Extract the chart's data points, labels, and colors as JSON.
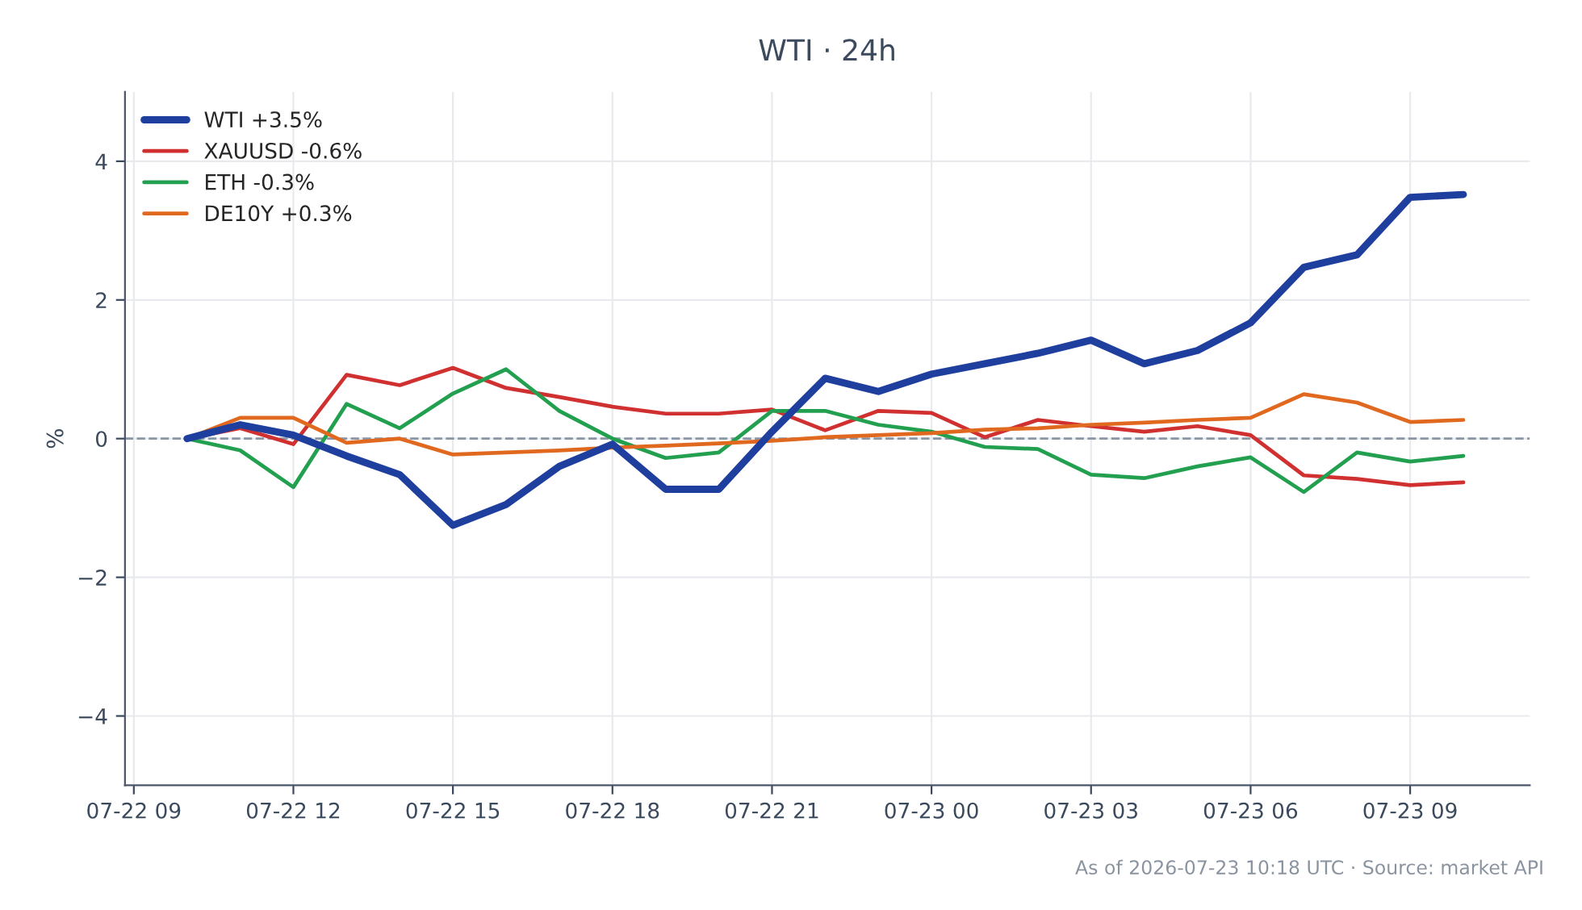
{
  "chart_data": {
    "type": "line",
    "title": "WTI · 24h",
    "ylabel": "%",
    "x": [
      "2026-07-22T10:00",
      "2026-07-22T11:00",
      "2026-07-22T12:00",
      "2026-07-22T13:00",
      "2026-07-22T14:00",
      "2026-07-22T15:00",
      "2026-07-22T16:00",
      "2026-07-22T17:00",
      "2026-07-22T18:00",
      "2026-07-22T19:00",
      "2026-07-22T20:00",
      "2026-07-22T21:00",
      "2026-07-22T22:00",
      "2026-07-22T23:00",
      "2026-07-23T00:00",
      "2026-07-23T01:00",
      "2026-07-23T02:00",
      "2026-07-23T03:00",
      "2026-07-23T04:00",
      "2026-07-23T05:00",
      "2026-07-23T06:00",
      "2026-07-23T07:00",
      "2026-07-23T08:00",
      "2026-07-23T09:00",
      "2026-07-23T10:00"
    ],
    "series": [
      {
        "name": "WTI +3.5%",
        "color": "#1f3f9f",
        "values": [
          0,
          0.2,
          0.05,
          -0.25,
          -0.52,
          -1.25,
          -0.95,
          -0.4,
          -0.08,
          -0.73,
          -0.73,
          0.1,
          0.87,
          0.68,
          0.93,
          1.08,
          1.23,
          1.42,
          1.08,
          1.27,
          1.67,
          2.47,
          2.65,
          3.48,
          3.52
        ]
      },
      {
        "name": "XAUUSD -0.6%",
        "color": "#d03030",
        "values": [
          0,
          0.15,
          -0.08,
          0.92,
          0.77,
          1.02,
          0.73,
          0.6,
          0.46,
          0.36,
          0.36,
          0.42,
          0.12,
          0.4,
          0.37,
          0.02,
          0.27,
          0.18,
          0.1,
          0.18,
          0.05,
          -0.53,
          -0.58,
          -0.67,
          -0.63
        ]
      },
      {
        "name": "ETH -0.3%",
        "color": "#22a050",
        "values": [
          0,
          -0.17,
          -0.7,
          0.5,
          0.15,
          0.65,
          1.0,
          0.4,
          0.0,
          -0.28,
          -0.2,
          0.4,
          0.4,
          0.2,
          0.1,
          -0.12,
          -0.15,
          -0.52,
          -0.57,
          -0.4,
          -0.27,
          -0.77,
          -0.2,
          -0.33,
          -0.25
        ]
      },
      {
        "name": "DE10Y +0.3%",
        "color": "#e0691f",
        "values": [
          0,
          0.3,
          0.3,
          -0.06,
          0.0,
          -0.23,
          -0.2,
          -0.17,
          -0.13,
          -0.1,
          -0.07,
          -0.03,
          0.02,
          0.05,
          0.08,
          0.13,
          0.15,
          0.2,
          0.23,
          0.27,
          0.3,
          0.64,
          0.52,
          0.24,
          0.27
        ]
      }
    ],
    "xlim": [
      "2026-07-22T08:50",
      "2026-07-23T11:15"
    ],
    "xticks": [
      {
        "value": "2026-07-22T09:00",
        "label": "07-22 09"
      },
      {
        "value": "2026-07-22T12:00",
        "label": "07-22 12"
      },
      {
        "value": "2026-07-22T15:00",
        "label": "07-22 15"
      },
      {
        "value": "2026-07-22T18:00",
        "label": "07-22 18"
      },
      {
        "value": "2026-07-22T21:00",
        "label": "07-22 21"
      },
      {
        "value": "2026-07-23T00:00",
        "label": "07-23 00"
      },
      {
        "value": "2026-07-23T03:00",
        "label": "07-23 03"
      },
      {
        "value": "2026-07-23T06:00",
        "label": "07-23 06"
      },
      {
        "value": "2026-07-23T09:00",
        "label": "07-23 09"
      }
    ],
    "ylim": [
      -5,
      5
    ],
    "yticks": [
      {
        "value": -4,
        "label": "−4"
      },
      {
        "value": -2,
        "label": "−2"
      },
      0,
      2,
      4
    ],
    "ref_lines": [
      {
        "axis": "y",
        "value": 0,
        "color": "#8a96a8",
        "line_style": "dashed"
      }
    ],
    "grid": true,
    "legend": "top left",
    "marker": "none",
    "line_style": "solid",
    "annotations": [
      "As of 2026-07-23 10:18 UTC · Source: market API"
    ]
  }
}
